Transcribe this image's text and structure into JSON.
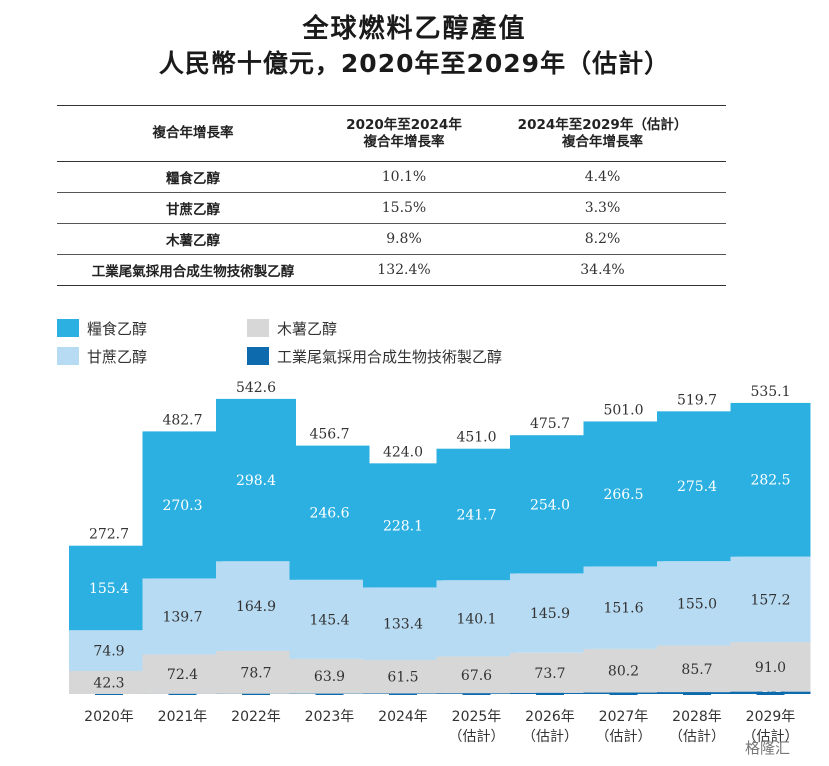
{
  "title": {
    "line1": "全球燃料乙醇產值",
    "line2": "人民幣十億元，2020年至2029年（估計）"
  },
  "table": {
    "headers": {
      "c1": "複合年增長率",
      "c2_line1": "2020年至2024年",
      "c2_line2": "複合年增長率",
      "c3_line1": "2024年至2029年（估計）",
      "c3_line2": "複合年增長率"
    },
    "rows": [
      {
        "label": "糧食乙醇",
        "cagr_2020_2024": "10.1%",
        "cagr_2024_2029": "4.4%"
      },
      {
        "label": "甘蔗乙醇",
        "cagr_2020_2024": "15.5%",
        "cagr_2024_2029": "3.3%"
      },
      {
        "label": "木薯乙醇",
        "cagr_2020_2024": "9.8%",
        "cagr_2024_2029": "8.2%"
      },
      {
        "label": "工業尾氣採用合成生物技術製乙醇",
        "cagr_2020_2024": "132.4%",
        "cagr_2024_2029": "34.4%"
      }
    ]
  },
  "legend": [
    {
      "name": "糧食乙醇",
      "color": "#2bb0e1"
    },
    {
      "name": "木薯乙醇",
      "color": "#d7d7d7"
    },
    {
      "name": "甘蔗乙醇",
      "color": "#b7dbf3"
    },
    {
      "name": "工業尾氣採用合成生物技術製乙醇",
      "color": "#0d6aad"
    }
  ],
  "chart_data": {
    "type": "bar",
    "stacked": true,
    "title": "全球燃料乙醇產值",
    "ylabel": "人民幣十億元",
    "categories": [
      "2020年",
      "2021年",
      "2022年",
      "2023年",
      "2024年",
      "2025年",
      "2026年",
      "2027年",
      "2028年",
      "2029年"
    ],
    "category_sublabels": [
      "",
      "",
      "",
      "",
      "",
      "（估計）",
      "（估計）",
      "（估計）",
      "（估計）",
      "（估計）"
    ],
    "series": [
      {
        "name": "工業尾氣採用合成生物技術製乙醇",
        "color": "#0d6aad",
        "label_color": "#ffffff",
        "values": [
          0.0,
          0.3,
          0.5,
          0.7,
          1.0,
          1.5,
          2.1,
          2.7,
          3.5,
          4.4
        ]
      },
      {
        "name": "木薯乙醇",
        "color": "#d7d7d7",
        "label_color": "#333333",
        "values": [
          42.3,
          72.4,
          78.7,
          63.9,
          61.5,
          67.6,
          73.7,
          80.2,
          85.7,
          91.0
        ]
      },
      {
        "name": "甘蔗乙醇",
        "color": "#b7dbf3",
        "label_color": "#333333",
        "values": [
          74.9,
          139.7,
          164.9,
          145.4,
          133.4,
          140.1,
          145.9,
          151.6,
          155.0,
          157.2
        ]
      },
      {
        "name": "糧食乙醇",
        "color": "#2bb0e1",
        "label_color": "#ffffff",
        "values": [
          155.4,
          270.3,
          298.4,
          246.6,
          228.1,
          241.7,
          254.0,
          266.5,
          275.4,
          282.5
        ]
      }
    ],
    "totals": [
      272.7,
      482.7,
      542.6,
      456.7,
      424.0,
      451.0,
      475.7,
      501.0,
      519.7,
      535.1
    ],
    "ylim": [
      0,
      560
    ],
    "grid": false,
    "legend_position": "top-left"
  },
  "watermark": "格隆汇"
}
